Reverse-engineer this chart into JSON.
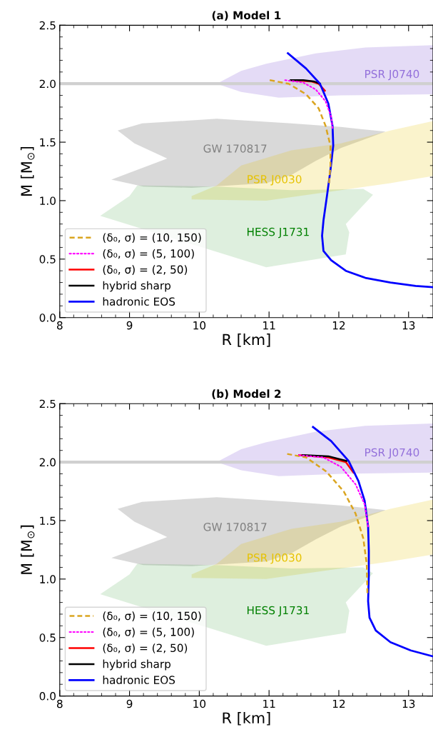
{
  "chart_data": [
    {
      "type": "line",
      "title": "(a) Model 1",
      "xlabel": "R [km]",
      "ylabel": "M [M$_{⊙}$]",
      "xlim": [
        8,
        13.35
      ],
      "ylim": [
        0,
        2.5
      ],
      "xticks": [
        8,
        9,
        10,
        11,
        12,
        13
      ],
      "yticks": [
        {
          "value": 0,
          "label": "0.0"
        },
        {
          "value": 0.5,
          "label": "0.5"
        },
        {
          "value": 1,
          "label": "1.0"
        },
        {
          "value": 1.5,
          "label": "1.5"
        },
        {
          "value": 2,
          "label": "2.0"
        },
        {
          "value": 2.5,
          "label": "2.5"
        }
      ],
      "grid": false,
      "legend": "bottom left",
      "ref_lines": [
        {
          "axis": "y",
          "value": 2.0,
          "color": "#d0d0d0"
        }
      ],
      "series": [
        {
          "type": "area",
          "name": "PSR J0740",
          "color": "#9370db",
          "x": [
            10.25,
            10.6,
            10.96,
            11.67,
            12.38,
            13.35,
            13.35,
            12.03,
            11.14,
            10.6
          ],
          "values": [
            2.0,
            2.11,
            2.17,
            2.26,
            2.31,
            2.33,
            1.91,
            1.9,
            1.88,
            1.93
          ]
        },
        {
          "type": "area",
          "name": "GW 170817",
          "color": "#808080",
          "x": [
            8.83,
            9.18,
            10.25,
            11.32,
            12.03,
            12.67,
            12.03,
            11.67,
            11.32,
            10.96,
            9.89,
            9.2,
            8.74,
            9.54,
            9.07
          ],
          "values": [
            1.6,
            1.66,
            1.7,
            1.66,
            1.63,
            1.59,
            1.45,
            1.34,
            1.22,
            1.15,
            1.11,
            1.12,
            1.18,
            1.36,
            1.49
          ]
        },
        {
          "type": "area",
          "name": "PSR J0030",
          "color": "#e6c200",
          "x": [
            9.89,
            10.25,
            10.6,
            11.32,
            12.03,
            12.74,
            13.35,
            13.35,
            12.74,
            12.03,
            10.96,
            9.89
          ],
          "values": [
            1.04,
            1.13,
            1.3,
            1.43,
            1.49,
            1.6,
            1.68,
            1.21,
            1.15,
            1.09,
            1.0,
            1.01
          ]
        },
        {
          "type": "area",
          "name": "HESS J1731",
          "color": "#008000",
          "x": [
            8.58,
            9.0,
            9.11,
            10.25,
            11.32,
            12.35,
            12.49,
            12.1,
            12.15,
            12.1,
            10.96
          ],
          "values": [
            0.87,
            1.04,
            1.13,
            1.12,
            1.09,
            1.1,
            1.05,
            0.8,
            0.73,
            0.54,
            0.43
          ]
        },
        {
          "name": "(δ₀, σ) = (10, 150)",
          "color": "#daa520",
          "line_style": "dashed",
          "x": [
            11.01,
            11.28,
            11.53,
            11.71,
            11.81,
            11.88,
            11.88,
            11.86
          ],
          "values": [
            2.03,
            2.0,
            1.91,
            1.79,
            1.64,
            1.47,
            1.3,
            1.15
          ]
        },
        {
          "name": "(δ₀, σ) = (5, 100)",
          "color": "#ff00ff",
          "line_style": "dotted",
          "x": [
            11.23,
            11.49,
            11.67,
            11.81,
            11.89,
            11.91
          ],
          "values": [
            2.03,
            2.01,
            1.95,
            1.85,
            1.72,
            1.62
          ]
        },
        {
          "name": "(δ₀, σ) = (2, 50)",
          "color": "#ff0000",
          "line_style": "solid",
          "x": [
            11.32,
            11.6,
            11.71,
            11.8
          ],
          "values": [
            2.03,
            2.02,
            2.0,
            1.94
          ]
        },
        {
          "name": "hybrid sharp",
          "color": "#000000",
          "line_style": "solid",
          "x": [
            11.31,
            11.49,
            11.64,
            11.73
          ],
          "values": [
            2.03,
            2.03,
            2.02,
            2.0
          ]
        },
        {
          "name": "hadronic EOS",
          "color": "#0000ff",
          "line_style": "solid",
          "x": [
            11.27,
            11.53,
            11.73,
            11.85,
            11.91,
            11.92,
            11.88,
            11.83,
            11.78,
            11.76,
            11.78,
            11.89,
            12.1,
            12.38,
            12.74,
            13.1,
            13.34
          ],
          "values": [
            2.26,
            2.13,
            2.0,
            1.83,
            1.64,
            1.47,
            1.26,
            1.04,
            0.83,
            0.7,
            0.57,
            0.49,
            0.4,
            0.34,
            0.3,
            0.27,
            0.26
          ]
        }
      ]
    },
    {
      "type": "line",
      "title": "(b) Model 2",
      "xlabel": "R [km]",
      "ylabel": "M [M$_{⊙}$]",
      "xlim": [
        8,
        13.35
      ],
      "ylim": [
        0,
        2.5
      ],
      "xticks": [
        8,
        9,
        10,
        11,
        12,
        13
      ],
      "yticks": [
        {
          "value": 0,
          "label": "0.0"
        },
        {
          "value": 0.5,
          "label": "0.5"
        },
        {
          "value": 1,
          "label": "1.0"
        },
        {
          "value": 1.5,
          "label": "1.5"
        },
        {
          "value": 2,
          "label": "2.0"
        },
        {
          "value": 2.5,
          "label": "2.5"
        }
      ],
      "grid": false,
      "legend": "bottom left",
      "ref_lines": [
        {
          "axis": "y",
          "value": 2.0,
          "color": "#d0d0d0"
        }
      ],
      "series": [
        {
          "type": "area",
          "name": "PSR J0740",
          "color": "#9370db",
          "x": [
            10.25,
            10.6,
            10.96,
            11.67,
            12.38,
            13.35,
            13.35,
            12.03,
            11.14,
            10.6
          ],
          "values": [
            2.0,
            2.11,
            2.17,
            2.26,
            2.31,
            2.33,
            1.91,
            1.9,
            1.88,
            1.93
          ]
        },
        {
          "type": "area",
          "name": "GW 170817",
          "color": "#808080",
          "x": [
            8.83,
            9.18,
            10.25,
            11.32,
            12.03,
            12.67,
            12.03,
            11.67,
            11.32,
            10.96,
            9.89,
            9.2,
            8.74,
            9.54,
            9.07
          ],
          "values": [
            1.6,
            1.66,
            1.7,
            1.66,
            1.63,
            1.59,
            1.45,
            1.34,
            1.22,
            1.15,
            1.11,
            1.12,
            1.18,
            1.36,
            1.49
          ]
        },
        {
          "type": "area",
          "name": "PSR J0030",
          "color": "#e6c200",
          "x": [
            9.89,
            10.25,
            10.6,
            11.32,
            12.03,
            12.74,
            13.35,
            13.35,
            12.74,
            12.03,
            10.96,
            9.89
          ],
          "values": [
            1.04,
            1.13,
            1.3,
            1.43,
            1.49,
            1.6,
            1.68,
            1.21,
            1.15,
            1.09,
            1.0,
            1.01
          ]
        },
        {
          "type": "area",
          "name": "HESS J1731",
          "color": "#008000",
          "x": [
            8.58,
            9.0,
            9.11,
            10.25,
            11.32,
            12.35,
            12.49,
            12.1,
            12.15,
            12.1,
            10.96
          ],
          "values": [
            0.87,
            1.04,
            1.13,
            1.12,
            1.09,
            1.1,
            1.05,
            0.8,
            0.73,
            0.54,
            0.43
          ]
        },
        {
          "name": "(δ₀, σ) = (10, 150)",
          "color": "#daa520",
          "line_style": "dashed",
          "x": [
            11.26,
            11.53,
            11.82,
            12.07,
            12.24,
            12.35,
            12.4,
            12.41
          ],
          "values": [
            2.07,
            2.04,
            1.92,
            1.75,
            1.56,
            1.35,
            1.13,
            0.88
          ]
        },
        {
          "name": "(δ₀, σ) = (5, 100)",
          "color": "#ff00ff",
          "line_style": "dotted",
          "x": [
            11.43,
            11.78,
            12.03,
            12.24,
            12.37,
            12.42
          ],
          "values": [
            2.06,
            2.04,
            1.96,
            1.81,
            1.64,
            1.45
          ]
        },
        {
          "name": "(δ₀, σ) = (2, 50)",
          "color": "#ff0000",
          "line_style": "solid",
          "x": [
            11.43,
            11.85,
            12.1,
            12.21
          ],
          "values": [
            2.06,
            2.04,
            2.0,
            1.91
          ]
        },
        {
          "name": "hybrid sharp",
          "color": "#000000",
          "line_style": "solid",
          "x": [
            11.48,
            11.85,
            12.11
          ],
          "values": [
            2.06,
            2.05,
            2.01
          ]
        },
        {
          "name": "hadronic EOS",
          "color": "#0000ff",
          "line_style": "solid",
          "x": [
            11.63,
            11.89,
            12.14,
            12.28,
            12.37,
            12.42,
            12.43,
            12.43,
            12.42,
            12.44,
            12.53,
            12.74,
            13.03,
            13.34
          ],
          "values": [
            2.3,
            2.18,
            2.01,
            1.84,
            1.67,
            1.45,
            1.24,
            1.03,
            0.81,
            0.67,
            0.56,
            0.46,
            0.39,
            0.34
          ]
        }
      ]
    }
  ]
}
